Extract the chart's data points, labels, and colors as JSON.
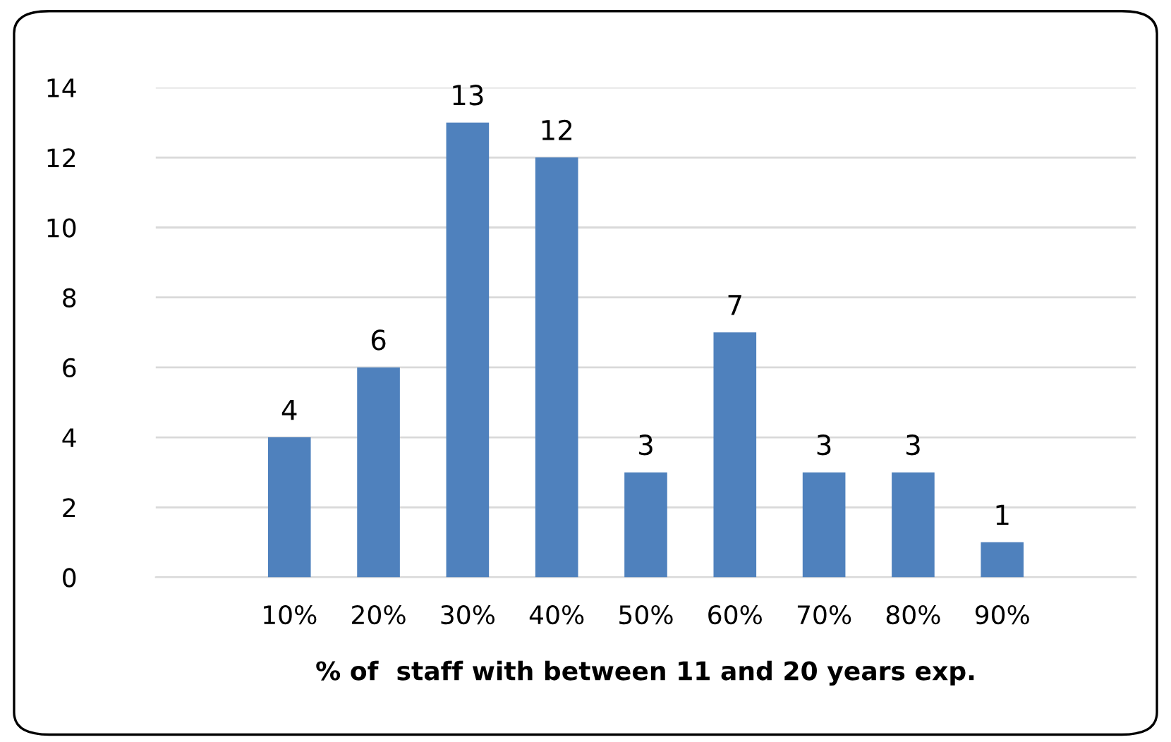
{
  "chart_data": {
    "type": "bar",
    "xlabel": "% of  staff with between 11 and 20 years exp.",
    "categories": [
      null,
      "10%",
      "20%",
      "30%",
      "40%",
      "50%",
      "60%",
      "70%",
      "80%",
      "90%",
      null
    ],
    "values": [
      null,
      4,
      6,
      13,
      12,
      3,
      7,
      3,
      3,
      1,
      null
    ],
    "color": "#4f81bd",
    "ylim": [
      0,
      14
    ],
    "yticks": [
      0,
      2,
      4,
      6,
      8,
      10,
      12,
      14
    ],
    "grid": "y",
    "data_labels": true,
    "legend": false
  }
}
